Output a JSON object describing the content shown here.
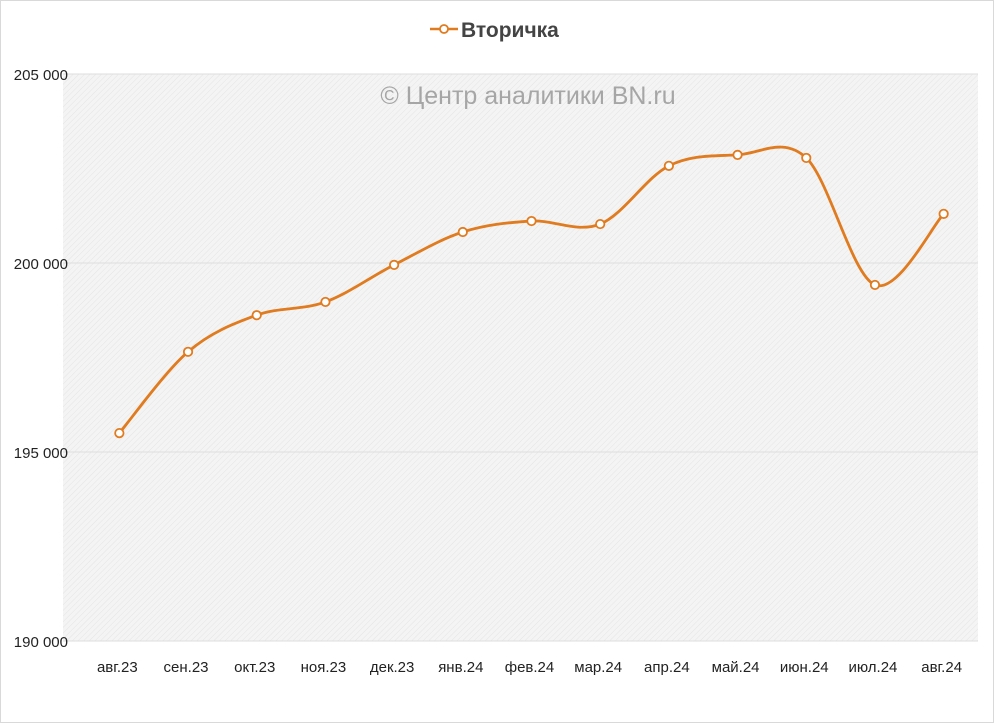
{
  "chart_data": {
    "type": "line",
    "title": "",
    "watermark": "© Центр аналитики BN.ru",
    "legend": {
      "entries": [
        "Вторичка"
      ],
      "placement": "top"
    },
    "categories": [
      "авг.23",
      "сен.23",
      "окт.23",
      "ноя.23",
      "дек.23",
      "янв.24",
      "фев.24",
      "мар.24",
      "апр.24",
      "май.24",
      "июн.24",
      "июл.24",
      "авг.24"
    ],
    "series": [
      {
        "name": "Вторичка",
        "color": "#e07b1f",
        "values": [
          195500,
          197650,
          198620,
          198970,
          199950,
          200820,
          201110,
          201030,
          202570,
          202860,
          202780,
          199420,
          201300
        ]
      }
    ],
    "ylim": [
      190000,
      205000
    ],
    "yticks": [
      190000,
      195000,
      200000,
      205000
    ],
    "ytick_labels": [
      "190 000",
      "195 000",
      "200 000",
      "205 000"
    ],
    "xlabel": "",
    "ylabel": "",
    "grid": true
  }
}
